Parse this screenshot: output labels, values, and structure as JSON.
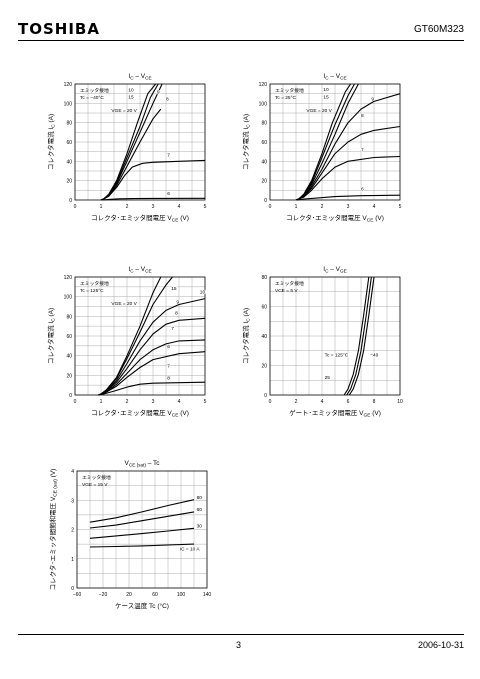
{
  "header": {
    "brand": "TOSHIBA",
    "part": "GT60M323"
  },
  "footer": {
    "page": "3",
    "date": "2006-10-31"
  },
  "chart_data": [
    {
      "id": "ic-vce-m40",
      "type": "line",
      "title": "IC – VCE",
      "title_main": "I",
      "title_sub": "C",
      "title_mid": " – V",
      "title_sub2": "CE",
      "xlabel": "コレクタ･エミッタ間電圧",
      "xsym": "V",
      "xsub": "CE",
      "xunit": "(V)",
      "ylabel": "コレクタ電流",
      "ysym": "I",
      "ysub": "C",
      "yunit": "(A)",
      "xlim": [
        0,
        5
      ],
      "ylim": [
        0,
        120
      ],
      "xticks": [
        0,
        1,
        2,
        3,
        4,
        5
      ],
      "yticks": [
        0,
        20,
        40,
        60,
        80,
        100,
        120
      ],
      "notes": [
        "エミッタ接地",
        "Tc = −40°C"
      ],
      "vge_note": "VGE = 20 V",
      "series": [
        {
          "name": "20",
          "x": [
            1,
            1.1,
            1.3,
            1.6,
            2,
            2.4,
            2.8,
            3.1
          ],
          "y": [
            0,
            1,
            6,
            20,
            48,
            80,
            110,
            120
          ]
        },
        {
          "name": "15",
          "x": [
            1,
            1.1,
            1.3,
            1.6,
            2,
            2.5,
            2.9,
            3.2
          ],
          "y": [
            0,
            1,
            5,
            18,
            44,
            76,
            106,
            120
          ]
        },
        {
          "name": "10",
          "x": [
            1,
            1.1,
            1.3,
            1.6,
            2,
            2.5,
            3,
            3.35
          ],
          "y": [
            0,
            1,
            5,
            17,
            40,
            70,
            100,
            120
          ]
        },
        {
          "name": "9",
          "x": [
            1,
            1.1,
            1.3,
            1.6,
            2,
            2.5,
            3,
            3.3
          ],
          "y": [
            0,
            1,
            4,
            15,
            35,
            60,
            84,
            94
          ]
        },
        {
          "name": "7",
          "x": [
            1,
            1.1,
            1.3,
            1.6,
            1.9,
            2.2,
            2.6,
            3,
            4,
            5
          ],
          "y": [
            0,
            1,
            4,
            13,
            25,
            34,
            38,
            39,
            40,
            41
          ]
        },
        {
          "name": "6",
          "x": [
            1.05,
            1.3,
            1.7,
            2.2,
            3,
            5
          ],
          "y": [
            0,
            0.6,
            1.2,
            1.5,
            1.7,
            1.8
          ]
        }
      ],
      "labels": [
        {
          "text": "10",
          "x": 2.05,
          "y": 112
        },
        {
          "text": "15",
          "x": 2.05,
          "y": 105
        },
        {
          "text": "9",
          "x": 3.15,
          "y": 110
        },
        {
          "text": "8",
          "x": 3.5,
          "y": 103
        },
        {
          "text": "7",
          "x": 3.55,
          "y": 45
        },
        {
          "text": "6",
          "x": 3.55,
          "y": 5
        }
      ]
    },
    {
      "id": "ic-vce-25",
      "type": "line",
      "title": "IC – VCE",
      "title_main": "I",
      "title_sub": "C",
      "title_mid": " – V",
      "title_sub2": "CE",
      "xlabel": "コレクタ･エミッタ間電圧",
      "xsym": "V",
      "xsub": "CE",
      "xunit": "(V)",
      "ylabel": "コレクタ電流",
      "ysym": "I",
      "ysub": "C",
      "yunit": "(A)",
      "xlim": [
        0,
        5
      ],
      "ylim": [
        0,
        120
      ],
      "xticks": [
        0,
        1,
        2,
        3,
        4,
        5
      ],
      "yticks": [
        0,
        20,
        40,
        60,
        80,
        100,
        120
      ],
      "notes": [
        "エミッタ接地",
        "Tc = 25°C"
      ],
      "vge_note": "VGE = 20 V",
      "series": [
        {
          "name": "20",
          "x": [
            1,
            1.1,
            1.3,
            1.6,
            2,
            2.4,
            2.9,
            3.1
          ],
          "y": [
            0,
            1,
            6,
            20,
            48,
            80,
            112,
            120
          ]
        },
        {
          "name": "15",
          "x": [
            1,
            1.1,
            1.3,
            1.6,
            2,
            2.5,
            3,
            3.25
          ],
          "y": [
            0,
            1,
            5,
            18,
            44,
            78,
            108,
            120
          ]
        },
        {
          "name": "10",
          "x": [
            1,
            1.1,
            1.3,
            1.6,
            2,
            2.5,
            3,
            3.4
          ],
          "y": [
            0,
            1,
            5,
            16,
            38,
            68,
            100,
            120
          ]
        },
        {
          "name": "9",
          "x": [
            1,
            1.1,
            1.3,
            1.6,
            2,
            2.5,
            3,
            3.5,
            4,
            5
          ],
          "y": [
            0,
            1,
            4,
            14,
            32,
            58,
            80,
            94,
            102,
            110
          ]
        },
        {
          "name": "8",
          "x": [
            1,
            1.1,
            1.3,
            1.6,
            2,
            2.5,
            3,
            3.5,
            4,
            5
          ],
          "y": [
            0,
            1,
            4,
            12,
            28,
            48,
            60,
            68,
            72,
            76
          ]
        },
        {
          "name": "7",
          "x": [
            1,
            1.1,
            1.3,
            1.6,
            2,
            2.5,
            3,
            4,
            5
          ],
          "y": [
            0,
            1,
            3,
            10,
            22,
            34,
            40,
            44,
            45
          ]
        },
        {
          "name": "6",
          "x": [
            1.05,
            1.3,
            1.8,
            2.5,
            3.5,
            5
          ],
          "y": [
            0,
            1,
            2,
            3.5,
            4.5,
            5
          ]
        }
      ],
      "labels": [
        {
          "text": "10",
          "x": 2.05,
          "y": 113
        },
        {
          "text": "15",
          "x": 2.05,
          "y": 105
        },
        {
          "text": "9",
          "x": 3.9,
          "y": 103
        },
        {
          "text": "8",
          "x": 3.5,
          "y": 86
        },
        {
          "text": "7",
          "x": 3.5,
          "y": 50
        },
        {
          "text": "6",
          "x": 3.5,
          "y": 10
        }
      ]
    },
    {
      "id": "ic-vce-125",
      "type": "line",
      "title": "IC – VCE",
      "title_main": "I",
      "title_sub": "C",
      "title_mid": " – V",
      "title_sub2": "CE",
      "xlabel": "コレクタ･エミッタ間電圧",
      "xsym": "V",
      "xsub": "CE",
      "xunit": "(V)",
      "ylabel": "コレクタ電流",
      "ysym": "I",
      "ysub": "C",
      "yunit": "(A)",
      "xlim": [
        0,
        5
      ],
      "ylim": [
        0,
        120
      ],
      "xticks": [
        0,
        1,
        2,
        3,
        4,
        5
      ],
      "yticks": [
        0,
        20,
        40,
        60,
        80,
        100,
        120
      ],
      "notes": [
        "エミッタ接地",
        "Tc = 125°C"
      ],
      "vge_note": "VGE = 20 V",
      "series": [
        {
          "name": "20",
          "x": [
            0.9,
            1,
            1.2,
            1.6,
            2,
            2.5,
            3,
            3.3
          ],
          "y": [
            0,
            1,
            5,
            18,
            40,
            70,
            104,
            120
          ]
        },
        {
          "name": "15",
          "x": [
            0.9,
            1,
            1.2,
            1.6,
            2,
            2.5,
            3,
            3.5,
            3.75
          ],
          "y": [
            0,
            1,
            5,
            17,
            37,
            64,
            92,
            112,
            120
          ]
        },
        {
          "name": "10",
          "x": [
            0.9,
            1,
            1.2,
            1.6,
            2,
            2.5,
            3,
            3.5,
            4,
            5
          ],
          "y": [
            0,
            1,
            4,
            15,
            32,
            55,
            74,
            86,
            92,
            98
          ]
        },
        {
          "name": "9",
          "x": [
            0.9,
            1,
            1.2,
            1.6,
            2,
            2.5,
            3,
            3.5,
            4,
            5
          ],
          "y": [
            0,
            1,
            4,
            13,
            27,
            46,
            62,
            72,
            76,
            78
          ]
        },
        {
          "name": "8",
          "x": [
            0.9,
            1,
            1.2,
            1.6,
            2,
            2.5,
            3,
            3.5,
            4,
            5
          ],
          "y": [
            0,
            1,
            3,
            11,
            22,
            36,
            46,
            52,
            55,
            56
          ]
        },
        {
          "name": "7",
          "x": [
            0.9,
            1,
            1.2,
            1.6,
            2,
            2.5,
            3,
            4,
            5
          ],
          "y": [
            0,
            1,
            3,
            9,
            18,
            28,
            36,
            42,
            44
          ]
        },
        {
          "name": "6",
          "x": [
            0.9,
            1.1,
            1.5,
            2,
            2.5,
            3,
            4,
            5
          ],
          "y": [
            0,
            1,
            4,
            8,
            11,
            12,
            12.5,
            13
          ]
        }
      ],
      "labels": [
        {
          "text": "10",
          "x": 4.8,
          "y": 103
        },
        {
          "text": "15",
          "x": 3.7,
          "y": 107
        },
        {
          "text": "9",
          "x": 3.9,
          "y": 93
        },
        {
          "text": "8",
          "x": 3.85,
          "y": 82
        },
        {
          "text": "7",
          "x": 3.7,
          "y": 66
        },
        {
          "text": "6",
          "x": 3.55,
          "y": 48
        },
        {
          "text": "7",
          "x": 3.55,
          "y": 28
        },
        {
          "text": "8",
          "x": 3.55,
          "y": 16
        }
      ]
    },
    {
      "id": "ic-vge",
      "type": "line",
      "title": "IC – VGE",
      "title_main": "I",
      "title_sub": "C",
      "title_mid": " – V",
      "title_sub2": "GE",
      "xlabel": "ゲート･エミッタ間電圧",
      "xsym": "V",
      "xsub": "GE",
      "xunit": "(V)",
      "ylabel": "コレクタ電流",
      "ysym": "I",
      "ysub": "C",
      "yunit": "(A)",
      "xlim": [
        0,
        10
      ],
      "ylim": [
        0,
        80
      ],
      "xticks": [
        0,
        2,
        4,
        6,
        8,
        10
      ],
      "yticks": [
        0,
        20,
        40,
        60,
        80
      ],
      "notes": [
        "エミッタ接地",
        "VCE = 5 V"
      ],
      "vge_note": "",
      "series": [
        {
          "name": "125",
          "x": [
            5.7,
            6,
            6.4,
            6.8,
            7.2,
            7.6
          ],
          "y": [
            0,
            4,
            14,
            30,
            54,
            80
          ]
        },
        {
          "name": "25",
          "x": [
            5.9,
            6.2,
            6.6,
            7,
            7.4,
            7.8
          ],
          "y": [
            0,
            4,
            14,
            30,
            54,
            80
          ]
        },
        {
          "name": "−40",
          "x": [
            6.1,
            6.4,
            6.8,
            7.2,
            7.6,
            8
          ],
          "y": [
            0,
            4,
            14,
            30,
            54,
            80
          ]
        }
      ],
      "labels": [
        {
          "text": "Tc = 125°C",
          "x": 4.2,
          "y": 26
        },
        {
          "text": "−40",
          "x": 7.7,
          "y": 26
        },
        {
          "text": "25",
          "x": 4.2,
          "y": 11
        }
      ]
    },
    {
      "id": "vcesat-tc",
      "type": "line",
      "title": "VCE (sat) – Tc",
      "title_main": "V",
      "title_sub": "CE (sat)",
      "title_mid": " – Tc",
      "title_sub2": "",
      "xlabel": "ケース温度",
      "xsym": "Tc",
      "xsub": "",
      "xunit": "(°C)",
      "ylabel": "コレクタ･エミッタ間飽和電圧",
      "ysym": "V",
      "ysub": "CE (sat)",
      "yunit": "(V)",
      "xlim": [
        -60,
        140
      ],
      "ylim": [
        0,
        4
      ],
      "xticks": [
        -60,
        -20,
        20,
        60,
        100,
        140
      ],
      "yticks": [
        0,
        1,
        2,
        3,
        4
      ],
      "notes": [
        "エミッタ接地",
        "VGE = 15 V"
      ],
      "vge_note": "",
      "series": [
        {
          "name": "80",
          "x": [
            -40,
            0,
            40,
            80,
            120
          ],
          "y": [
            2.25,
            2.4,
            2.6,
            2.82,
            3.02
          ]
        },
        {
          "name": "60",
          "x": [
            -40,
            0,
            40,
            80,
            120
          ],
          "y": [
            2.05,
            2.15,
            2.3,
            2.45,
            2.6
          ]
        },
        {
          "name": "30",
          "x": [
            -40,
            0,
            40,
            80,
            120
          ],
          "y": [
            1.7,
            1.78,
            1.86,
            1.95,
            2.04
          ]
        },
        {
          "name": "IC = 10 A",
          "x": [
            -40,
            0,
            40,
            80,
            120
          ],
          "y": [
            1.4,
            1.42,
            1.44,
            1.47,
            1.5
          ]
        }
      ],
      "labels": [
        {
          "text": "80",
          "x": 124,
          "y": 3.05
        },
        {
          "text": "60",
          "x": 124,
          "y": 2.63
        },
        {
          "text": "30",
          "x": 124,
          "y": 2.07
        },
        {
          "text": "IC = 10 A",
          "x": 98,
          "y": 1.28
        }
      ]
    }
  ]
}
